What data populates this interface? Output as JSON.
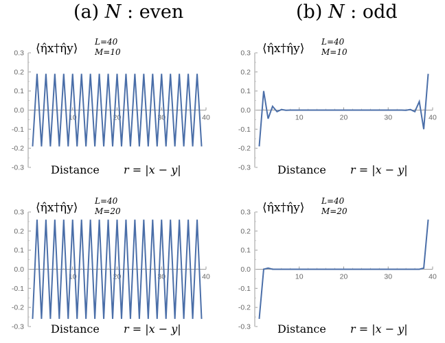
{
  "titles": {
    "a": {
      "prefix": "(a)",
      "var": "N",
      "sep": ":",
      "word": "even"
    },
    "b": {
      "prefix": "(b)",
      "var": "N",
      "sep": ":",
      "word": "odd"
    }
  },
  "chart_data": [
    {
      "id": "a-top",
      "type": "line",
      "label": {
        "main": "⟨η̂x†η̂y⟩",
        "sup": "L=40",
        "sub": "M=10"
      },
      "xlabel": "Distance",
      "xlabel_math": "r = |x − y|",
      "xticks": [
        10,
        20,
        30,
        40
      ],
      "yticks": [
        0.3,
        0.2,
        0.1,
        0.0,
        -0.1,
        -0.2,
        -0.3
      ],
      "xlim": [
        0,
        40
      ],
      "ylim": [
        -0.3,
        0.3
      ],
      "color": "#4a6ea8",
      "series": [
        {
          "x": [
            1,
            2,
            3,
            4,
            5,
            6,
            7,
            8,
            9,
            10,
            11,
            12,
            13,
            14,
            15,
            16,
            17,
            18,
            19,
            20,
            21,
            22,
            23,
            24,
            25,
            26,
            27,
            28,
            29,
            30,
            31,
            32,
            33,
            34,
            35,
            36,
            37,
            38,
            39
          ],
          "y": [
            -0.19,
            0.19,
            -0.19,
            0.19,
            -0.19,
            0.19,
            -0.19,
            0.19,
            -0.19,
            0.19,
            -0.19,
            0.19,
            -0.19,
            0.19,
            -0.19,
            0.19,
            -0.19,
            0.19,
            -0.19,
            0.19,
            -0.19,
            0.19,
            -0.19,
            0.19,
            -0.19,
            0.19,
            -0.19,
            0.19,
            -0.19,
            0.19,
            -0.19,
            0.19,
            -0.19,
            0.19,
            -0.19,
            0.19,
            -0.19,
            0.19,
            -0.19
          ]
        }
      ]
    },
    {
      "id": "b-top",
      "type": "line",
      "label": {
        "main": "⟨η̂x†η̂y⟩",
        "sup": "L=40",
        "sub": "M=10"
      },
      "xlabel": "Distance",
      "xlabel_math": "r = |x − y|",
      "xticks": [
        10,
        20,
        30,
        40
      ],
      "yticks": [
        0.3,
        0.2,
        0.1,
        0.0,
        -0.1,
        -0.2,
        -0.3
      ],
      "xlim": [
        0,
        40
      ],
      "ylim": [
        -0.3,
        0.3
      ],
      "color": "#4a6ea8",
      "series": [
        {
          "x": [
            1,
            2,
            3,
            4,
            5,
            6,
            7,
            8,
            9,
            10,
            11,
            12,
            13,
            14,
            15,
            16,
            17,
            18,
            19,
            20,
            21,
            22,
            23,
            24,
            25,
            26,
            27,
            28,
            29,
            30,
            31,
            32,
            33,
            34,
            35,
            36,
            37,
            38,
            39
          ],
          "y": [
            -0.19,
            0.1,
            -0.045,
            0.02,
            -0.008,
            0.003,
            -0.001,
            0,
            0,
            0,
            0,
            0,
            0,
            0,
            0,
            0,
            0,
            0,
            0,
            0,
            0,
            0,
            0,
            0,
            0,
            0,
            0,
            0,
            0,
            0,
            0,
            0,
            0,
            -0.001,
            0.003,
            -0.008,
            0.045,
            -0.1,
            0.19
          ]
        }
      ]
    },
    {
      "id": "a-bottom",
      "type": "line",
      "label": {
        "main": "⟨η̂x†η̂y⟩",
        "sup": "L=40",
        "sub": "M=20"
      },
      "xlabel": "Distance",
      "xlabel_math": "r = |x − y|",
      "xticks": [
        10,
        20,
        30,
        40
      ],
      "yticks": [
        0.3,
        0.2,
        0.1,
        0.0,
        -0.1,
        -0.2,
        -0.3
      ],
      "xlim": [
        0,
        40
      ],
      "ylim": [
        -0.3,
        0.3
      ],
      "color": "#4a6ea8",
      "series": [
        {
          "x": [
            1,
            2,
            3,
            4,
            5,
            6,
            7,
            8,
            9,
            10,
            11,
            12,
            13,
            14,
            15,
            16,
            17,
            18,
            19,
            20,
            21,
            22,
            23,
            24,
            25,
            26,
            27,
            28,
            29,
            30,
            31,
            32,
            33,
            34,
            35,
            36,
            37,
            38,
            39
          ],
          "y": [
            -0.26,
            0.26,
            -0.26,
            0.26,
            -0.26,
            0.26,
            -0.26,
            0.26,
            -0.26,
            0.26,
            -0.26,
            0.26,
            -0.26,
            0.26,
            -0.26,
            0.26,
            -0.26,
            0.26,
            -0.26,
            0.26,
            -0.26,
            0.26,
            -0.26,
            0.26,
            -0.26,
            0.26,
            -0.26,
            0.26,
            -0.26,
            0.26,
            -0.26,
            0.26,
            -0.26,
            0.26,
            -0.26,
            0.26,
            -0.26,
            0.26,
            -0.26
          ]
        }
      ]
    },
    {
      "id": "b-bottom",
      "type": "line",
      "label": {
        "main": "⟨η̂x†η̂y⟩",
        "sup": "L=40",
        "sub": "M=20"
      },
      "xlabel": "Distance",
      "xlabel_math": "r = |x − y|",
      "xticks": [
        10,
        20,
        30,
        40
      ],
      "yticks": [
        0.3,
        0.2,
        0.1,
        0.0,
        -0.1,
        -0.2,
        -0.3
      ],
      "xlim": [
        0,
        40
      ],
      "ylim": [
        -0.3,
        0.3
      ],
      "color": "#4a6ea8",
      "series": [
        {
          "x": [
            1,
            2,
            3,
            4,
            5,
            6,
            7,
            8,
            9,
            10,
            11,
            12,
            13,
            14,
            15,
            16,
            17,
            18,
            19,
            20,
            21,
            22,
            23,
            24,
            25,
            26,
            27,
            28,
            29,
            30,
            31,
            32,
            33,
            34,
            35,
            36,
            37,
            38,
            39
          ],
          "y": [
            -0.26,
            0,
            0.006,
            0,
            0,
            0,
            0,
            0,
            0,
            0,
            0,
            0,
            0,
            0,
            0,
            0,
            0,
            0,
            0,
            0,
            0,
            0,
            0,
            0,
            0,
            0,
            0,
            0,
            0,
            0,
            0,
            0,
            0,
            0,
            0,
            0,
            0,
            0.006,
            0.26
          ]
        }
      ]
    }
  ]
}
